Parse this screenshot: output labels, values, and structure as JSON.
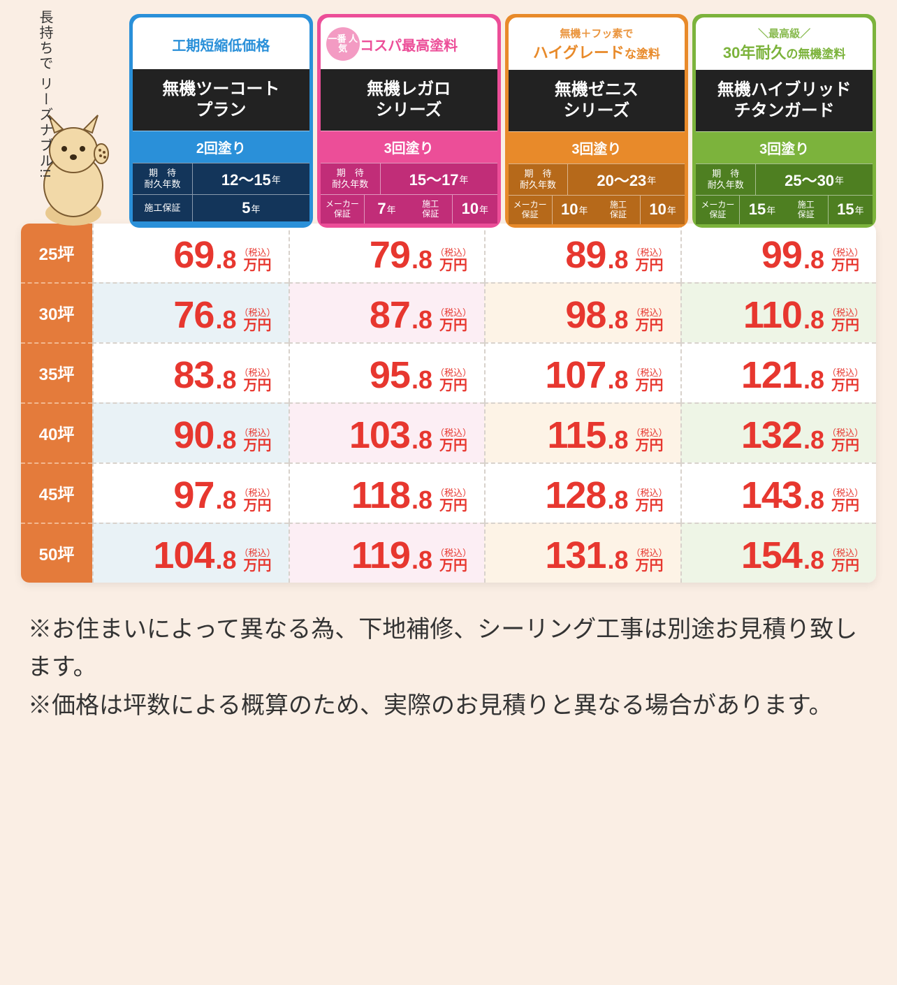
{
  "bubble_text": "長持ちで\nリーズナブル!!",
  "plans": [
    {
      "accent": "#2a90d9",
      "dark": "#13355a",
      "top_color": "#2a90d9",
      "top_line1": "工期短縮低価格",
      "top_line2": "",
      "name_line1": "無機ツーコート",
      "name_line2": "プラン",
      "coats": "2回塗り",
      "durability_label": "期　待\n耐久年数",
      "durability_value": "12～15",
      "warranties": [
        {
          "label": "施工保証",
          "value": "5"
        }
      ]
    },
    {
      "accent": "#ec4e98",
      "dark": "#c12d78",
      "top_color": "#ec4e98",
      "badge": "一番\n人気",
      "badge_bg": "#f39bc3",
      "top_line1": "コスパ最高塗料",
      "top_line2": "",
      "name_line1": "無機レガロ",
      "name_line2": "シリーズ",
      "coats": "3回塗り",
      "durability_label": "期　待\n耐久年数",
      "durability_value": "15～17",
      "warranties": [
        {
          "label": "メーカー\n保証",
          "value": "7"
        },
        {
          "label": "施工\n保証",
          "value": "10"
        }
      ]
    },
    {
      "accent": "#e88a2a",
      "dark": "#b6691a",
      "top_color": "#e88a2a",
      "top_pre": "無機＋フッ素で",
      "top_line1": "ハイグレード",
      "top_line1_suffix": "な塗料",
      "name_line1": "無機ゼニス",
      "name_line2": "シリーズ",
      "coats": "3回塗り",
      "durability_label": "期　待\n耐久年数",
      "durability_value": "20～23",
      "warranties": [
        {
          "label": "メーカー\n保証",
          "value": "10"
        },
        {
          "label": "施工\n保証",
          "value": "10"
        }
      ]
    },
    {
      "accent": "#7cb33c",
      "dark": "#4e7f21",
      "top_color": "#7cb33c",
      "top_pre": "＼最高級／",
      "top_line1": "30年耐久",
      "top_line1_suffix": "の無機塗料",
      "name_line1": "無機ハイブリッド",
      "name_line2": "チタンガード",
      "coats": "3回塗り",
      "durability_label": "期　待\n耐久年数",
      "durability_value": "25～30",
      "warranties": [
        {
          "label": "メーカー\n保証",
          "value": "15"
        },
        {
          "label": "施工\n保証",
          "value": "15"
        }
      ]
    }
  ],
  "tsubo_rows": [
    "25坪",
    "30坪",
    "35坪",
    "40坪",
    "45坪",
    "50坪"
  ],
  "prices": [
    [
      [
        69,
        8
      ],
      [
        79,
        8
      ],
      [
        89,
        8
      ],
      [
        99,
        8
      ]
    ],
    [
      [
        76,
        8
      ],
      [
        87,
        8
      ],
      [
        98,
        8
      ],
      [
        110,
        8
      ]
    ],
    [
      [
        83,
        8
      ],
      [
        95,
        8
      ],
      [
        107,
        8
      ],
      [
        121,
        8
      ]
    ],
    [
      [
        90,
        8
      ],
      [
        103,
        8
      ],
      [
        115,
        8
      ],
      [
        132,
        8
      ]
    ],
    [
      [
        97,
        8
      ],
      [
        118,
        8
      ],
      [
        128,
        8
      ],
      [
        143,
        8
      ]
    ],
    [
      [
        104,
        8
      ],
      [
        119,
        8
      ],
      [
        131,
        8
      ],
      [
        154,
        8
      ]
    ]
  ],
  "tax_label": "（税込）",
  "unit_label": "万円",
  "year_suffix": "年",
  "notes": [
    "※お住まいによって異なる為、下地補修、シーリング工事は別途お見積り致します。",
    "※価格は坪数による概算のため、実際のお見積りと異なる場合があります。"
  ],
  "tint_colors": [
    "#e9f2f6",
    "#fceef4",
    "#fdf3e6",
    "#eef5e6"
  ]
}
